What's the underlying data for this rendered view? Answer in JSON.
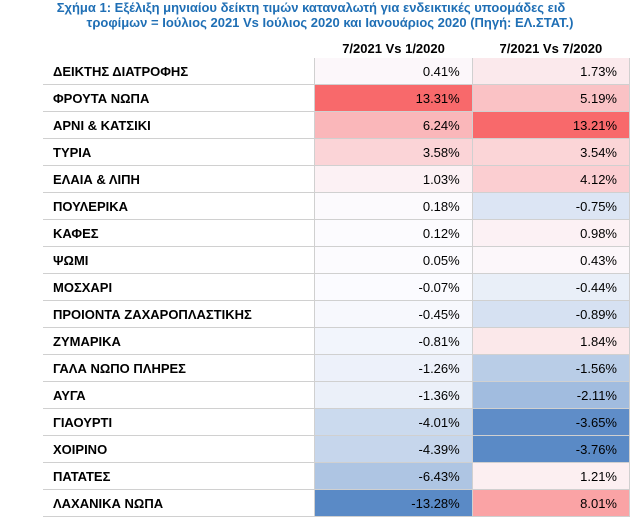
{
  "chart_data": {
    "type": "table",
    "title_line1": "Σχήμα 1: Εξέλιξη μηνιαίου δείκτη τιμών καταναλωτή για ενδεικτικές υποομάδες ειδ",
    "title_line2": "τροφίμων = Ιούλιος 2021 Vs Ιούλιος 2020 και Ιανουάριος 2020 (Πηγή: ΕΛ.ΣΤΑΤ.)",
    "columns": [
      "7/2021 Vs 1/2020",
      "7/2021 Vs 7/2020"
    ],
    "rows": [
      {
        "category": "ΔΕΙΚΤΗΣ ΔΙΑΤΡΟΦΗΣ",
        "values": [
          0.41,
          1.73
        ],
        "labels": [
          "0.41%",
          "1.73%"
        ]
      },
      {
        "category": "ΦΡΟΥΤΑ ΝΩΠΑ",
        "values": [
          13.31,
          5.19
        ],
        "labels": [
          "13.31%",
          "5.19%"
        ]
      },
      {
        "category": "ΑΡΝΙ & ΚΑΤΣΙΚΙ",
        "values": [
          6.24,
          13.21
        ],
        "labels": [
          "6.24%",
          "13.21%"
        ]
      },
      {
        "category": "ΤΥΡΙΑ",
        "values": [
          3.58,
          3.54
        ],
        "labels": [
          "3.58%",
          "3.54%"
        ]
      },
      {
        "category": "ΕΛΑΙΑ & ΛΙΠΗ",
        "values": [
          1.03,
          4.12
        ],
        "labels": [
          "1.03%",
          "4.12%"
        ]
      },
      {
        "category": "ΠΟΥΛΕΡΙΚΑ",
        "values": [
          0.18,
          -0.75
        ],
        "labels": [
          "0.18%",
          "-0.75%"
        ]
      },
      {
        "category": "ΚΑΦΕΣ",
        "values": [
          0.12,
          0.98
        ],
        "labels": [
          "0.12%",
          "0.98%"
        ]
      },
      {
        "category": "ΨΩΜΙ",
        "values": [
          0.05,
          0.43
        ],
        "labels": [
          "0.05%",
          "0.43%"
        ]
      },
      {
        "category": "ΜΟΣΧΑΡΙ",
        "values": [
          -0.07,
          -0.44
        ],
        "labels": [
          "-0.07%",
          "-0.44%"
        ]
      },
      {
        "category": "ΠΡΟΙΟΝΤΑ ΖΑΧΑΡΟΠΛΑΣΤΙΚΗΣ",
        "values": [
          -0.45,
          -0.89
        ],
        "labels": [
          "-0.45%",
          "-0.89%"
        ]
      },
      {
        "category": "ΖΥΜΑΡΙΚΑ",
        "values": [
          -0.81,
          1.84
        ],
        "labels": [
          "-0.81%",
          "1.84%"
        ]
      },
      {
        "category": "ΓΑΛΑ ΝΩΠΟ ΠΛΗΡΕΣ",
        "values": [
          -1.26,
          -1.56
        ],
        "labels": [
          "-1.26%",
          "-1.56%"
        ]
      },
      {
        "category": "ΑΥΓΑ",
        "values": [
          -1.36,
          -2.11
        ],
        "labels": [
          "-1.36%",
          "-2.11%"
        ]
      },
      {
        "category": "ΓΙΑΟΥΡΤΙ",
        "values": [
          -4.01,
          -3.65
        ],
        "labels": [
          "-4.01%",
          "-3.65%"
        ]
      },
      {
        "category": "ΧΟΙΡΙΝΟ",
        "values": [
          -4.39,
          -3.76
        ],
        "labels": [
          "-4.39%",
          "-3.76%"
        ]
      },
      {
        "category": "ΠΑΤΑΤΕΣ",
        "values": [
          -6.43,
          1.21
        ],
        "labels": [
          "-6.43%",
          "1.21%"
        ]
      },
      {
        "category": "ΛΑΧΑΝΙΚΑ ΝΩΠΑ",
        "values": [
          -13.28,
          8.01
        ],
        "labels": [
          "-13.28%",
          "8.01%"
        ]
      }
    ],
    "color_scale": {
      "positive": "#f8696b",
      "negative": "#5a8ac6",
      "neutral": "#fcfcff"
    }
  }
}
